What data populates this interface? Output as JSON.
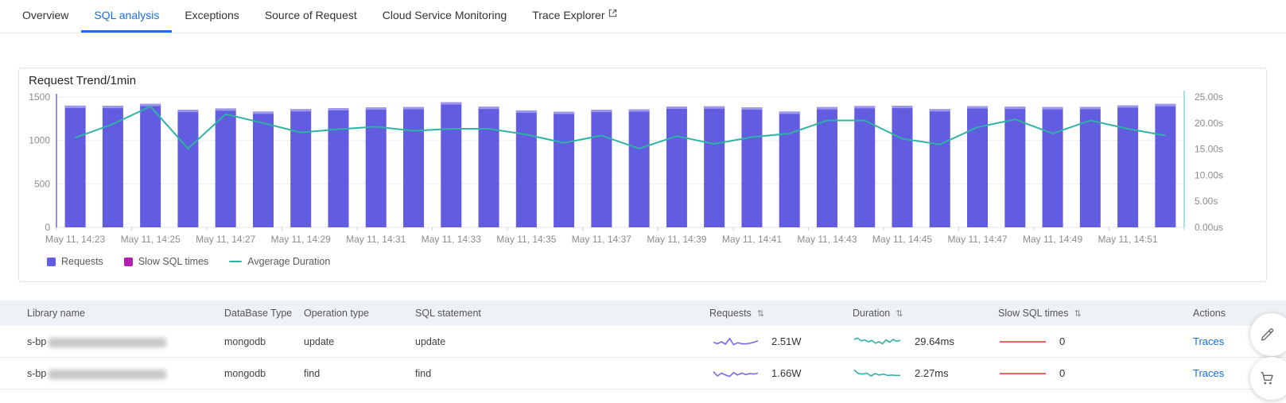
{
  "tabs": {
    "items": [
      {
        "label": "Overview",
        "active": false
      },
      {
        "label": "SQL analysis",
        "active": true
      },
      {
        "label": "Exceptions",
        "active": false
      },
      {
        "label": "Source of Request",
        "active": false
      },
      {
        "label": "Cloud Service Monitoring",
        "active": false
      },
      {
        "label": "Trace Explorer",
        "active": false,
        "external": true
      }
    ]
  },
  "chart": {
    "title": "Request Trend/1min",
    "legend": [
      {
        "label": "Requests",
        "color": "#615ce0",
        "marker": "square"
      },
      {
        "label": "Slow SQL times",
        "color": "#b01fb0",
        "marker": "square"
      },
      {
        "label": "Avgerage Duration",
        "color": "#2fb3a6",
        "marker": "line"
      }
    ]
  },
  "chart_data": {
    "type": "bar",
    "title": "Request Trend/1min",
    "categories": [
      "May 11, 14:23",
      "May 11, 14:24",
      "May 11, 14:25",
      "May 11, 14:26",
      "May 11, 14:27",
      "May 11, 14:28",
      "May 11, 14:29",
      "May 11, 14:30",
      "May 11, 14:31",
      "May 11, 14:32",
      "May 11, 14:33",
      "May 11, 14:34",
      "May 11, 14:35",
      "May 11, 14:36",
      "May 11, 14:37",
      "May 11, 14:38",
      "May 11, 14:39",
      "May 11, 14:40",
      "May 11, 14:41",
      "May 11, 14:42",
      "May 11, 14:43",
      "May 11, 14:44",
      "May 11, 14:45",
      "May 11, 14:46",
      "May 11, 14:47",
      "May 11, 14:48",
      "May 11, 14:49",
      "May 11, 14:50",
      "May 11, 14:51",
      "May 11, 14:52"
    ],
    "x_label_every": 2,
    "left_axis": {
      "ticks": [
        0,
        500,
        1000,
        1500
      ],
      "max": 1500
    },
    "right_axis": {
      "labels": [
        "0.00us",
        "5.00s",
        "10.00s",
        "15.00s",
        "20.00s",
        "25.00s"
      ],
      "values": [
        0,
        5,
        10,
        15,
        20,
        25
      ],
      "max": 25
    },
    "series": [
      {
        "name": "Requests",
        "type": "bar",
        "color": "#615ce0",
        "cap_color": "#9d97f0",
        "values": [
          1400,
          1398,
          1422,
          1352,
          1368,
          1332,
          1360,
          1372,
          1380,
          1385,
          1440,
          1388,
          1345,
          1330,
          1352,
          1358,
          1390,
          1392,
          1380,
          1332,
          1384,
          1396,
          1398,
          1360,
          1394,
          1388,
          1384,
          1386,
          1404,
          1420
        ]
      },
      {
        "name": "Slow SQL times",
        "type": "bar",
        "color": "#b01fb0",
        "values": [
          0,
          0,
          0,
          0,
          0,
          0,
          0,
          0,
          0,
          0,
          0,
          0,
          0,
          0,
          0,
          0,
          0,
          0,
          0,
          0,
          0,
          0,
          0,
          0,
          0,
          0,
          0,
          0,
          0,
          0
        ]
      },
      {
        "name": "Avgerage Duration",
        "type": "line",
        "axis": "right",
        "color": "#2fb3a6",
        "values": [
          17.2,
          19.8,
          23.2,
          15.1,
          21.7,
          20.0,
          18.2,
          18.8,
          19.3,
          18.5,
          18.9,
          18.9,
          17.8,
          16.2,
          17.6,
          15.1,
          17.5,
          16.0,
          17.3,
          18.0,
          20.5,
          20.5,
          17.0,
          15.9,
          19.2,
          20.7,
          18.0,
          20.5,
          18.9,
          17.6
        ]
      }
    ]
  },
  "table": {
    "columns": [
      {
        "label": "Library name",
        "sortable": false
      },
      {
        "label": "DataBase Type",
        "sortable": false
      },
      {
        "label": "Operation type",
        "sortable": false
      },
      {
        "label": "SQL statement",
        "sortable": false
      },
      {
        "label": "Requests",
        "sortable": true
      },
      {
        "label": "Duration",
        "sortable": true
      },
      {
        "label": "Slow SQL times",
        "sortable": true
      },
      {
        "label": "Actions",
        "sortable": false
      }
    ],
    "sort_icon": "⇅",
    "rows": [
      {
        "library_prefix": "s-bp",
        "library_redacted": true,
        "database_type": "mongodb",
        "operation_type": "update",
        "sql_statement": "update",
        "requests": "2.51W",
        "duration": "29.64ms",
        "slow_sql_times": "0",
        "action": "Traces",
        "requests_spark": [
          0.45,
          0.3,
          0.5,
          0.25,
          0.85,
          0.2,
          0.4,
          0.3,
          0.28,
          0.35,
          0.45,
          0.6
        ],
        "duration_spark": [
          0.75,
          0.9,
          0.6,
          0.7,
          0.5,
          0.65,
          0.35,
          0.5,
          0.3,
          0.7,
          0.45,
          0.75,
          0.55,
          0.65
        ],
        "slow_spark": [
          0.5,
          0.5
        ]
      },
      {
        "library_prefix": "s-bp",
        "library_redacted": true,
        "database_type": "mongodb",
        "operation_type": "find",
        "sql_statement": "find",
        "requests": "1.66W",
        "duration": "2.27ms",
        "slow_sql_times": "0",
        "action": "Traces",
        "requests_spark": [
          0.7,
          0.25,
          0.55,
          0.35,
          0.2,
          0.6,
          0.35,
          0.55,
          0.4,
          0.5,
          0.45,
          0.55
        ],
        "duration_spark": [
          0.9,
          0.5,
          0.45,
          0.55,
          0.25,
          0.5,
          0.35,
          0.45,
          0.3,
          0.35,
          0.3,
          0.32
        ],
        "slow_spark": [
          0.5,
          0.5
        ]
      }
    ]
  },
  "colors": {
    "accent_blue": "#1a6ee8",
    "bar_purple": "#615ce0",
    "line_teal": "#2fb3a6",
    "slow_magenta": "#b01fb0",
    "slow_spark_red": "#e23333",
    "requests_spark_purple": "#7468ec",
    "table_header_bg": "#eef1f6"
  },
  "floating": {
    "buttons": [
      {
        "icon": "pencil-icon"
      },
      {
        "icon": "cart-icon"
      }
    ]
  }
}
